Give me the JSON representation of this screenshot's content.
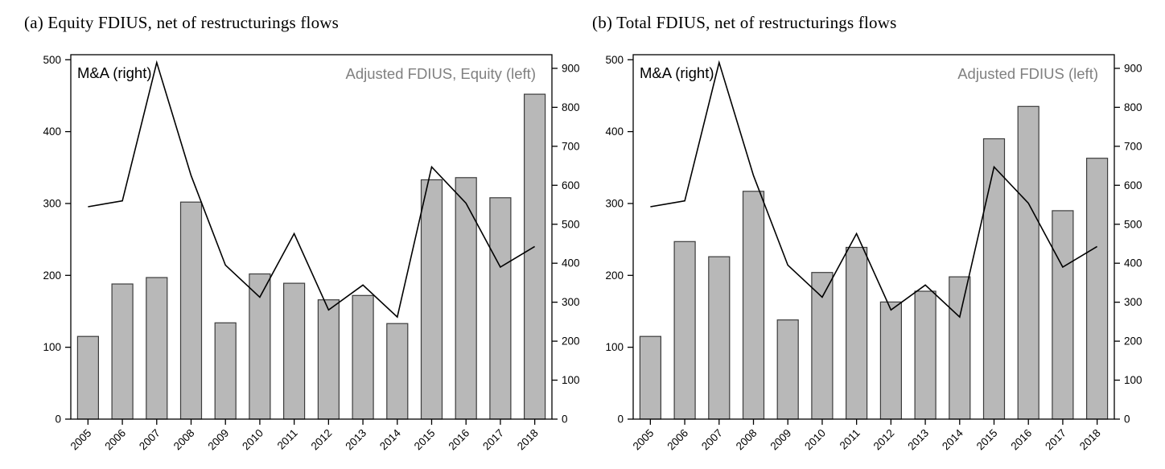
{
  "page": {
    "background": "#ffffff"
  },
  "colors": {
    "bar_fill": "#b8b8b8",
    "bar_stroke": "#3c3c3c",
    "line": "#000000",
    "legend_gray": "#808080",
    "axis": "#000000"
  },
  "chart_data": [
    {
      "type": "combo",
      "title": "(a) Equity FDIUS, net of restructurings flows",
      "categories": [
        "2005",
        "2006",
        "2007",
        "2008",
        "2009",
        "2010",
        "2011",
        "2012",
        "2013",
        "2014",
        "2015",
        "2016",
        "2017",
        "2018"
      ],
      "series": [
        {
          "name": "Adjusted FDIUS, Equity (left)",
          "type": "bar",
          "axis": "left",
          "values": [
            115,
            188,
            197,
            302,
            134,
            202,
            189,
            166,
            172,
            133,
            333,
            336,
            308,
            452
          ]
        },
        {
          "name": "M&A (right)",
          "type": "line",
          "axis": "right",
          "values": [
            545,
            560,
            915,
            625,
            395,
            313,
            476,
            280,
            344,
            262,
            647,
            554,
            390,
            443
          ]
        }
      ],
      "left_axis": {
        "min": 0,
        "max": 500,
        "tick_step": 100
      },
      "right_axis": {
        "min": 0,
        "max": 900,
        "tick_step": 100
      },
      "annotations": [
        {
          "text": "M&A (right)",
          "color": "#000000",
          "position": "top-left"
        },
        {
          "text": "Adjusted FDIUS, Equity (left)",
          "color": "#808080",
          "position": "top-right"
        }
      ],
      "grid": false,
      "legend_position": "inside-top"
    },
    {
      "type": "combo",
      "title": "(b) Total FDIUS, net of restructurings flows",
      "categories": [
        "2005",
        "2006",
        "2007",
        "2008",
        "2009",
        "2010",
        "2011",
        "2012",
        "2013",
        "2014",
        "2015",
        "2016",
        "2017",
        "2018"
      ],
      "series": [
        {
          "name": "Adjusted FDIUS (left)",
          "type": "bar",
          "axis": "left",
          "values": [
            115,
            247,
            226,
            317,
            138,
            204,
            239,
            163,
            178,
            198,
            390,
            435,
            290,
            363
          ]
        },
        {
          "name": "M&A (right)",
          "type": "line",
          "axis": "right",
          "values": [
            545,
            560,
            915,
            625,
            395,
            313,
            476,
            280,
            344,
            262,
            647,
            554,
            390,
            443
          ]
        }
      ],
      "left_axis": {
        "min": 0,
        "max": 500,
        "tick_step": 100
      },
      "right_axis": {
        "min": 0,
        "max": 900,
        "tick_step": 100
      },
      "annotations": [
        {
          "text": "M&A (right)",
          "color": "#000000",
          "position": "top-left"
        },
        {
          "text": "Adjusted FDIUS (left)",
          "color": "#808080",
          "position": "top-right"
        }
      ],
      "grid": false,
      "legend_position": "inside-top"
    }
  ]
}
